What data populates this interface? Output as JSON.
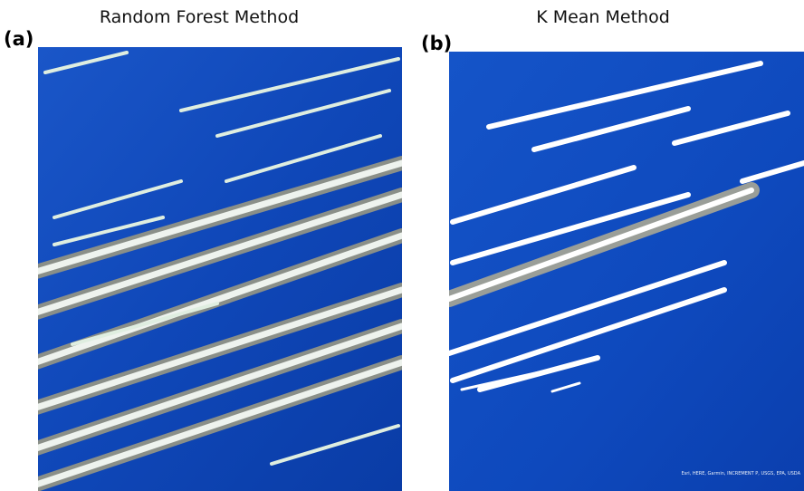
{
  "panels": [
    {
      "label": "(a)",
      "title": "Random Forest Method"
    },
    {
      "label": "(b)",
      "title": "K Mean Method",
      "attribution": "Esri, HERE, Garmin, INCREMENT P, USGS, EPA, USDA"
    }
  ]
}
